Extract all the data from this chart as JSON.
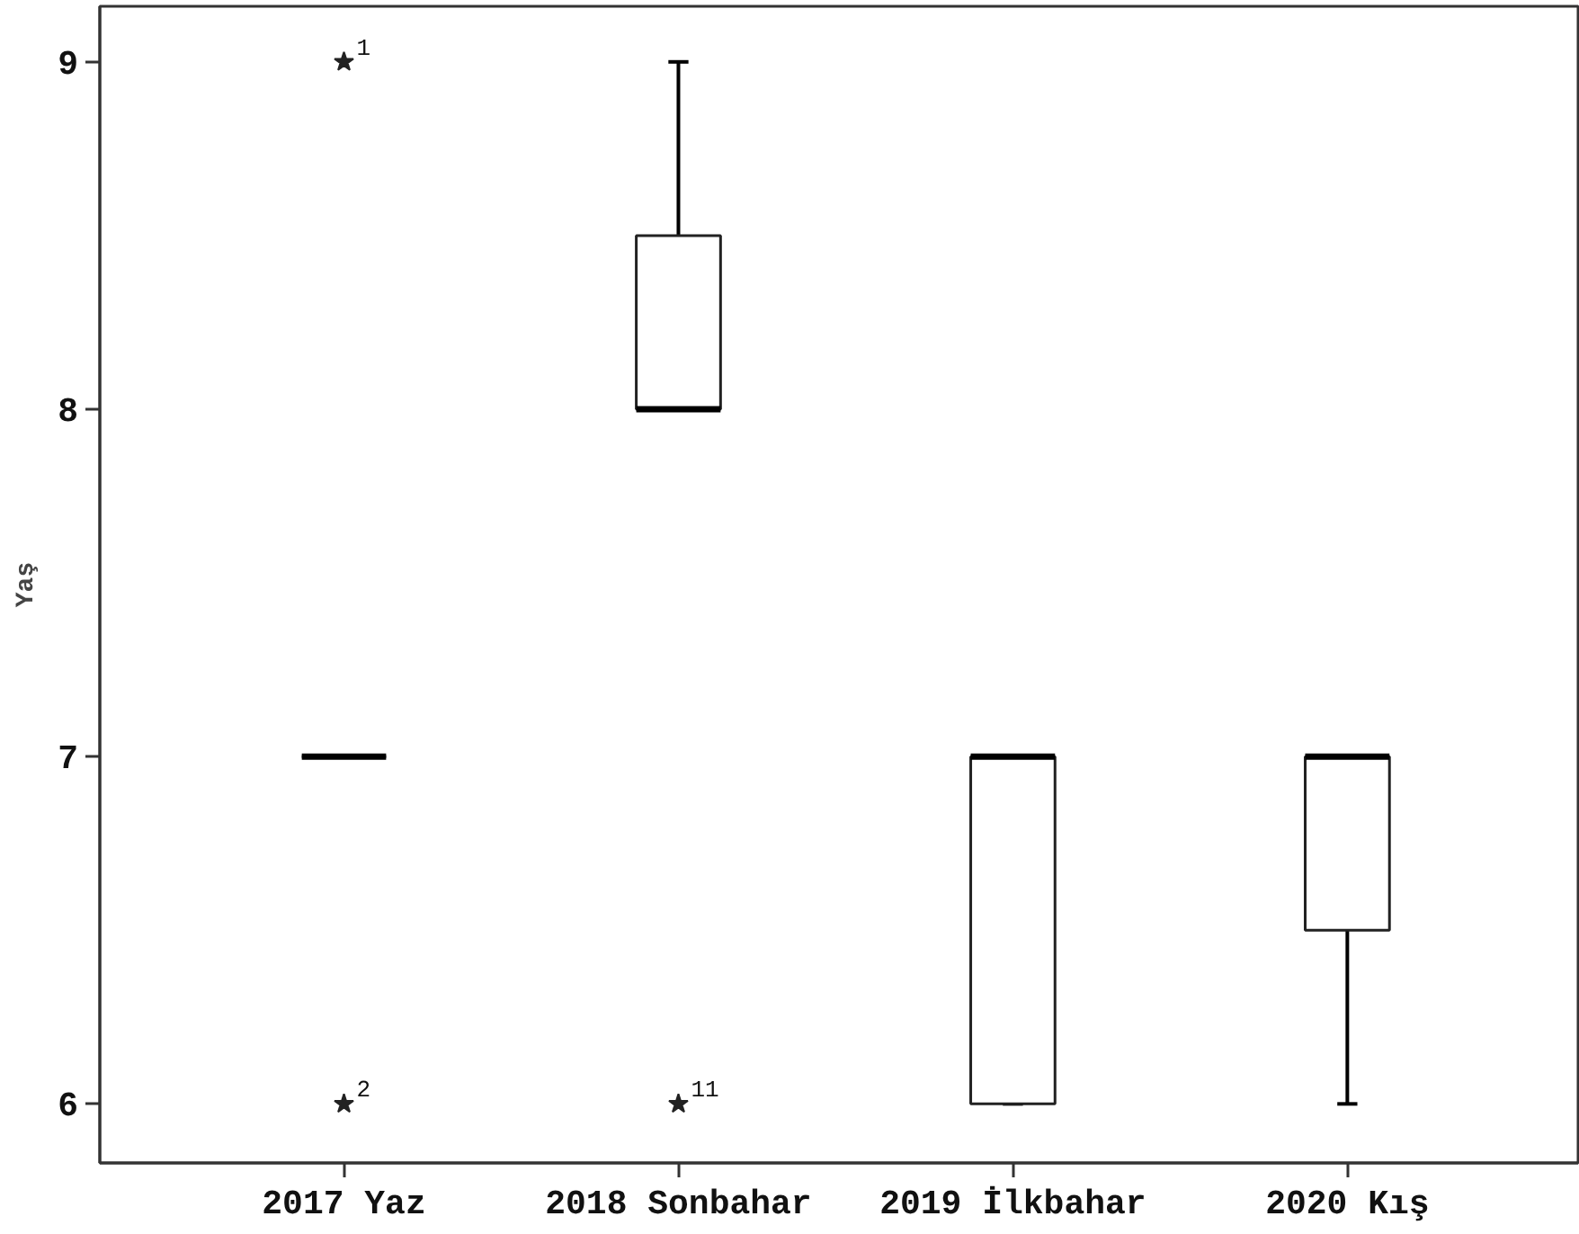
{
  "chart_data": {
    "type": "box",
    "ylabel": "Yaş",
    "categories": [
      "2017 Yaz",
      "2018 Sonbahar",
      "2019 İlkbahar",
      "2020 Kış"
    ],
    "boxes": [
      {
        "low": 7,
        "q1": 7,
        "median": 7,
        "q3": 7,
        "high": 7,
        "outliers": [
          9,
          6
        ]
      },
      {
        "low": 8,
        "q1": 8,
        "median": 8,
        "q3": 8.5,
        "high": 9,
        "outliers": [
          6
        ]
      },
      {
        "low": 6,
        "q1": 6,
        "median": 7,
        "q3": 7,
        "high": 7
      },
      {
        "low": 6,
        "q1": 6.5,
        "median": 7,
        "q3": 7,
        "high": 7
      }
    ],
    "ylim": [
      5.83,
      9.16
    ],
    "yticks": [
      6,
      7,
      8,
      9
    ],
    "marker": "star",
    "grid": false,
    "annotations": [
      "1",
      "2",
      "11"
    ]
  }
}
